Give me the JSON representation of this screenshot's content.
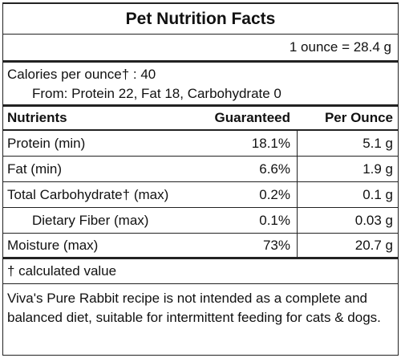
{
  "title": "Pet Nutrition Facts",
  "serving": "1 ounce = 28.4 g",
  "calories": {
    "line": "Calories per ounce† : 40",
    "from": "From: Protein 22, Fat 18, Carbohydrate 0"
  },
  "table": {
    "headers": {
      "nutrients": "Nutrients",
      "guaranteed": "Guaranteed",
      "per_ounce": "Per Ounce"
    },
    "rows": [
      {
        "name": "Protein (min)",
        "guaranteed": "18.1%",
        "per_ounce": "5.1 g"
      },
      {
        "name": "Fat (min)",
        "guaranteed": "6.6%",
        "per_ounce": "1.9 g"
      },
      {
        "name": "Total Carbohydrate† (max)",
        "guaranteed": "0.2%",
        "per_ounce": "0.1 g"
      },
      {
        "name": "Dietary Fiber (max)",
        "guaranteed": "0.1%",
        "per_ounce": "0.03 g"
      },
      {
        "name": "Moisture (max)",
        "guaranteed": "73%",
        "per_ounce": "20.7 g"
      }
    ]
  },
  "footnote": "† calculated value",
  "disclaimer": "Viva's Pure Rabbit recipe is not intended as a complete and balanced diet, suitable for intermittent feeding for cats & dogs."
}
